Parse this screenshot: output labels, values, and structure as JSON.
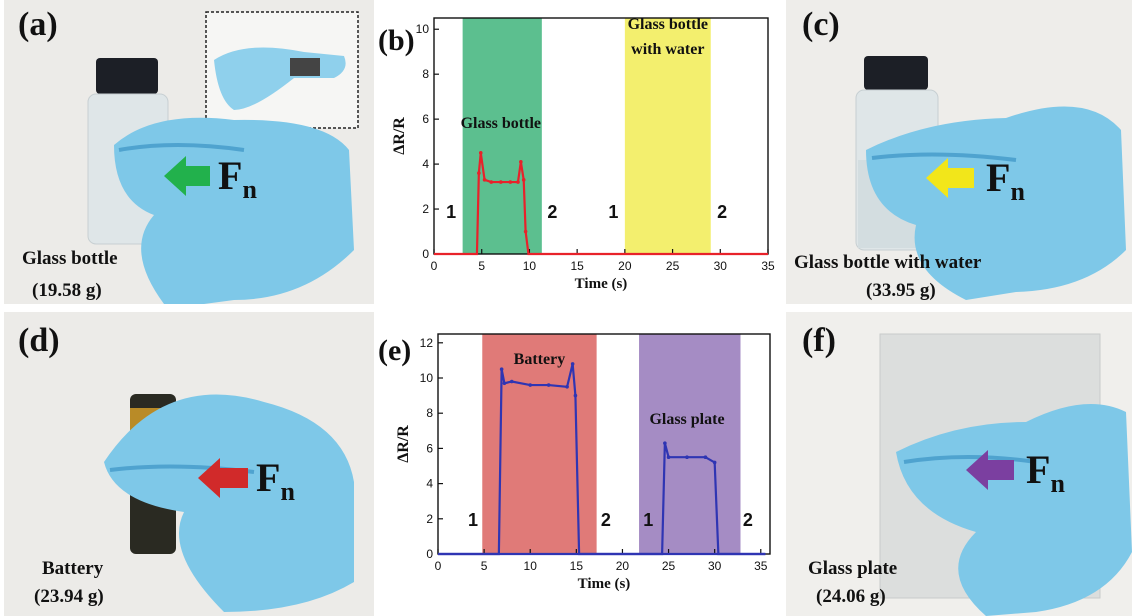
{
  "panels": {
    "a": {
      "label": "(a)",
      "caption_name": "Glass bottle",
      "caption_mass": "(19.58 g)",
      "force": "F",
      "force_sub": "n",
      "arrow_color": "#22b14c"
    },
    "c": {
      "label": "(c)",
      "caption_name": "Glass bottle with water",
      "caption_mass": "(33.95 g)",
      "force": "F",
      "force_sub": "n",
      "arrow_color": "#f2e61a"
    },
    "d": {
      "label": "(d)",
      "caption_name": "Battery",
      "caption_mass": "(23.94 g)",
      "force": "F",
      "force_sub": "n",
      "arrow_color": "#d12a2a"
    },
    "f": {
      "label": "(f)",
      "caption_name": "Glass plate",
      "caption_mass": "(24.06 g)",
      "force": "F",
      "force_sub": "n",
      "arrow_color": "#7b3fa0"
    }
  },
  "colors": {
    "glove": "#7ec8e8",
    "glove_shadow": "#4fa3cf",
    "bottle_cap": "#1c1f26",
    "glass": "#dfe6e8"
  },
  "chart_data": [
    {
      "panel_label": "(b)",
      "type": "line",
      "xlabel": "Time (s)",
      "ylabel": "ΔR/R",
      "xlim": [
        0,
        35
      ],
      "ylim": [
        0,
        10.5
      ],
      "xticks": [
        0,
        5,
        10,
        15,
        20,
        25,
        30,
        35
      ],
      "yticks": [
        0,
        2,
        4,
        6,
        8,
        10
      ],
      "line_color": "#e8222a",
      "bands": [
        {
          "x0": 3.0,
          "x1": 11.3,
          "color": "#5cbf8f"
        },
        {
          "x0": 20.0,
          "x1": 29.0,
          "color": "#f3ef6e"
        }
      ],
      "annotations": [
        {
          "text": "Glass bottle",
          "x": 7.0,
          "y": 5.6
        },
        {
          "text": "Glass bottle",
          "x": 24.5,
          "y": 10.0
        },
        {
          "text": "with water",
          "x": 24.5,
          "y": 8.9
        },
        {
          "text": "1",
          "x": 1.8,
          "y": 1.6
        },
        {
          "text": "2",
          "x": 12.4,
          "y": 1.6
        },
        {
          "text": "1",
          "x": 18.8,
          "y": 1.6
        },
        {
          "text": "2",
          "x": 30.2,
          "y": 1.6
        }
      ],
      "series": [
        {
          "x": [
            0,
            4.5,
            4.7,
            4.9,
            5.3,
            6,
            7,
            8,
            8.8,
            9.1,
            9.4,
            9.6,
            9.9,
            35
          ],
          "y": [
            0,
            0,
            3.6,
            4.5,
            3.3,
            3.2,
            3.2,
            3.2,
            3.2,
            4.1,
            3.3,
            1.0,
            0,
            0
          ]
        }
      ]
    },
    {
      "panel_label": "(e)",
      "type": "line",
      "xlabel": "Time (s)",
      "ylabel": "ΔR/R",
      "xlim": [
        0,
        36
      ],
      "ylim": [
        0,
        12.5
      ],
      "xticks": [
        0,
        5,
        10,
        15,
        20,
        25,
        30,
        35
      ],
      "yticks": [
        0,
        2,
        4,
        6,
        8,
        10,
        12
      ],
      "line_color": "#2f35b3",
      "bands": [
        {
          "x0": 4.8,
          "x1": 17.2,
          "color": "#e07a78"
        },
        {
          "x0": 21.8,
          "x1": 32.8,
          "color": "#a58cc4"
        }
      ],
      "annotations": [
        {
          "text": "Battery",
          "x": 11.0,
          "y": 10.8
        },
        {
          "text": "Glass plate",
          "x": 27.0,
          "y": 7.4
        },
        {
          "text": "1",
          "x": 3.8,
          "y": 1.6
        },
        {
          "text": "2",
          "x": 18.2,
          "y": 1.6
        },
        {
          "text": "1",
          "x": 22.8,
          "y": 1.6
        },
        {
          "text": "2",
          "x": 33.6,
          "y": 1.6
        }
      ],
      "series": [
        {
          "x": [
            0,
            6.6,
            6.9,
            7.2,
            8,
            10,
            12,
            14,
            14.6,
            14.9,
            15.3,
            35.5
          ],
          "y": [
            0,
            0,
            10.5,
            9.7,
            9.8,
            9.6,
            9.6,
            9.5,
            10.8,
            9.0,
            0,
            0
          ]
        },
        {
          "x": [
            0,
            24.3,
            24.6,
            25.0,
            27,
            29,
            30.0,
            30.4,
            35.5
          ],
          "y": [
            0,
            0,
            6.3,
            5.5,
            5.5,
            5.5,
            5.2,
            0,
            0
          ]
        }
      ]
    }
  ]
}
